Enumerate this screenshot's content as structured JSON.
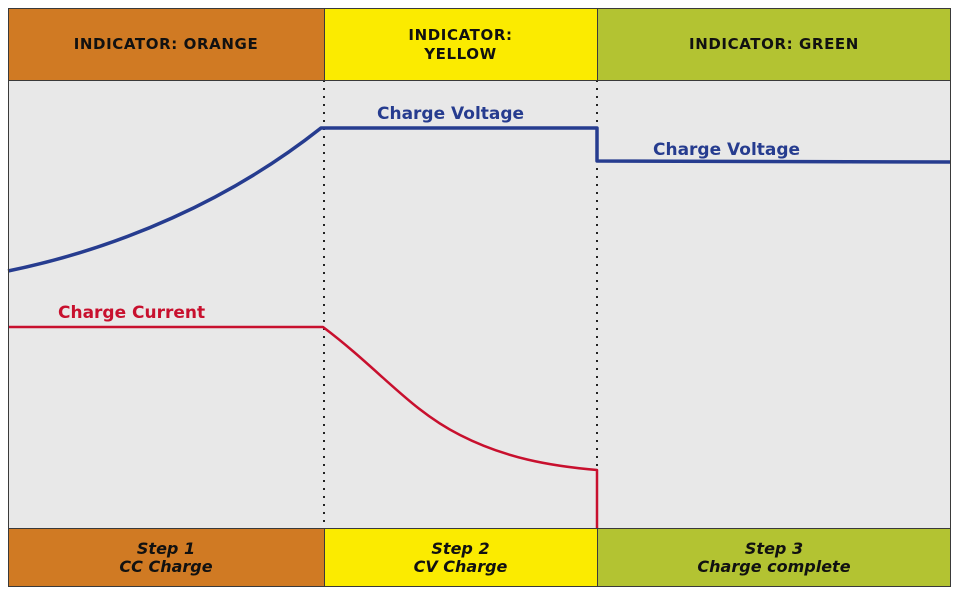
{
  "colors": {
    "orange": "#d07a23",
    "yellow": "#fbeb00",
    "green": "#b3c332",
    "voltage_line": "#263c8f",
    "current_line": "#c8102e",
    "plot_bg": "#e8e8e8"
  },
  "header": {
    "orange_label": "INDICATOR: ORANGE",
    "yellow_label_line1": "INDICATOR:",
    "yellow_label_line2": "YELLOW",
    "green_label": "INDICATOR: GREEN"
  },
  "curves": {
    "voltage_label_stage2": "Charge Voltage",
    "voltage_label_stage3": "Charge Voltage",
    "current_label": "Charge Current"
  },
  "steps": [
    {
      "line1": "Step 1",
      "line2": "CC Charge"
    },
    {
      "line1": "Step 2",
      "line2": "CV Charge"
    },
    {
      "line1": "Step 3",
      "line2": "Charge complete"
    }
  ]
}
